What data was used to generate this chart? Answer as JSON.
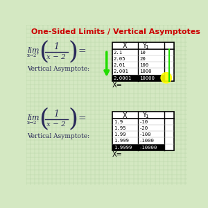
{
  "title": "One-Sided Limits / Vertical Asymptotes",
  "title_color": "#cc0000",
  "bg_color": "#d4e8c2",
  "grid_color": "#b8d4a8",
  "table1_x_vals": [
    "2.1",
    "2.05",
    "2.01",
    "2.001",
    "2.0001"
  ],
  "table1_y_vals": [
    "10",
    "20",
    "100",
    "1000",
    "10000"
  ],
  "table2_x_vals": [
    "1.9",
    "1.95",
    "1.99",
    "1.999",
    "1.9999"
  ],
  "table2_y_vals": [
    "-10",
    "-20",
    "-100",
    "-1000",
    "-10000"
  ],
  "table_header_x": "X",
  "table_header_y": "Y1",
  "table_xeq": "X=",
  "green_arrow_color": "#22dd00",
  "yellow_dot_color": "#ffff00",
  "table_bg": "#ffffff",
  "table_border": "#000000",
  "selected_row_bg": "#000000",
  "text_color": "#3a3a7a",
  "vert_asym_label": "Vertical Asymptote:",
  "formula_color": "#2a2a5a"
}
